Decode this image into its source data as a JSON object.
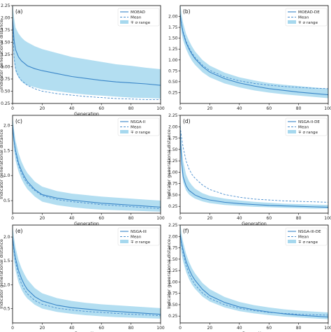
{
  "colors": {
    "median_line": "#3a86c8",
    "mean_line": "#4a8fcf",
    "band_fill": "#a6d8ee",
    "axis": "#000000"
  },
  "chart_data": [
    {
      "type": "line",
      "panel": "(a)",
      "legend": [
        "MOEAD",
        "Mean",
        "∓ σ range"
      ],
      "legend_position": "top-right",
      "xlabel": "Generation",
      "ylabel": "Indicator generational distance",
      "xlim": [
        0,
        100
      ],
      "ylim": [
        0.25,
        2.25
      ],
      "xticks": [
        "0",
        "20",
        "40",
        "60",
        "80",
        "100"
      ],
      "yticks": [
        "0.25",
        "0.50",
        "0.75",
        "1.00",
        "1.25",
        "1.50",
        "1.75",
        "2.00",
        "2.25"
      ],
      "x": [
        0,
        1,
        2,
        4,
        6,
        8,
        10,
        15,
        20,
        30,
        40,
        50,
        60,
        70,
        80,
        90,
        100
      ],
      "series": [
        {
          "name": "MOEAD",
          "values": [
            2.0,
            1.55,
            1.35,
            1.2,
            1.12,
            1.07,
            1.02,
            0.96,
            0.92,
            0.86,
            0.8,
            0.76,
            0.72,
            0.69,
            0.67,
            0.65,
            0.62
          ]
        },
        {
          "name": "Mean",
          "values": [
            2.0,
            1.2,
            0.95,
            0.8,
            0.72,
            0.67,
            0.62,
            0.55,
            0.5,
            0.45,
            0.42,
            0.39,
            0.37,
            0.35,
            0.34,
            0.33,
            0.33
          ]
        },
        {
          "name": "∓ σ range",
          "lower": [
            1.6,
            1.1,
            0.9,
            0.78,
            0.7,
            0.65,
            0.62,
            0.58,
            0.54,
            0.5,
            0.46,
            0.43,
            0.41,
            0.39,
            0.37,
            0.36,
            0.35
          ],
          "upper": [
            2.3,
            2.0,
            1.8,
            1.68,
            1.6,
            1.54,
            1.5,
            1.42,
            1.36,
            1.28,
            1.2,
            1.15,
            1.1,
            1.05,
            1.02,
            0.98,
            0.95
          ]
        }
      ]
    },
    {
      "type": "line",
      "panel": "(b)",
      "legend": [
        "MOEAD-DE",
        "Mean",
        "∓ σ range"
      ],
      "legend_position": "top-right",
      "xlabel": "",
      "ylabel": "",
      "xlim": [
        0,
        100
      ],
      "ylim": [
        0.0,
        2.25
      ],
      "xticks": [
        "0",
        "20",
        "40",
        "60",
        "80",
        "100"
      ],
      "yticks": [
        "0.25",
        "0.50",
        "0.75",
        "1.00",
        "1.25",
        "1.50",
        "1.75",
        "2.00"
      ],
      "x": [
        0,
        1,
        2,
        4,
        6,
        8,
        10,
        15,
        20,
        30,
        40,
        50,
        60,
        70,
        80,
        90,
        100
      ],
      "series": [
        {
          "name": "MOEAD-DE",
          "values": [
            2.05,
            1.8,
            1.62,
            1.4,
            1.25,
            1.13,
            1.03,
            0.85,
            0.72,
            0.57,
            0.47,
            0.4,
            0.34,
            0.3,
            0.26,
            0.23,
            0.2
          ]
        },
        {
          "name": "Mean",
          "values": [
            2.05,
            1.82,
            1.65,
            1.43,
            1.28,
            1.16,
            1.06,
            0.88,
            0.76,
            0.61,
            0.52,
            0.46,
            0.42,
            0.39,
            0.37,
            0.35,
            0.34
          ]
        },
        {
          "name": "∓ σ range",
          "lower": [
            1.85,
            1.6,
            1.45,
            1.25,
            1.1,
            0.98,
            0.89,
            0.72,
            0.6,
            0.46,
            0.37,
            0.3,
            0.25,
            0.21,
            0.18,
            0.15,
            0.12
          ],
          "upper": [
            2.3,
            2.05,
            1.85,
            1.6,
            1.44,
            1.31,
            1.2,
            1.0,
            0.87,
            0.71,
            0.6,
            0.53,
            0.47,
            0.43,
            0.4,
            0.37,
            0.34
          ]
        }
      ]
    },
    {
      "type": "line",
      "panel": "(c)",
      "legend": [
        "NSGA-II",
        "Mean",
        "∓ σ range"
      ],
      "legend_position": "top-right",
      "xlabel": "Generation",
      "ylabel": "Indicator generational distance",
      "xlim": [
        0,
        100
      ],
      "ylim": [
        0.25,
        2.2
      ],
      "xticks": [
        "0",
        "20",
        "40",
        "60",
        "80",
        "100"
      ],
      "yticks": [
        "0.5",
        "1.0",
        "1.5",
        "2.0"
      ],
      "x": [
        0,
        1,
        2,
        4,
        6,
        8,
        10,
        15,
        20,
        30,
        40,
        50,
        60,
        70,
        80,
        90,
        100
      ],
      "series": [
        {
          "name": "NSGA-II",
          "values": [
            2.0,
            1.7,
            1.5,
            1.25,
            1.1,
            0.98,
            0.88,
            0.72,
            0.62,
            0.55,
            0.51,
            0.48,
            0.45,
            0.43,
            0.41,
            0.39,
            0.37
          ]
        },
        {
          "name": "Mean",
          "values": [
            2.0,
            1.68,
            1.46,
            1.2,
            1.05,
            0.93,
            0.84,
            0.7,
            0.6,
            0.52,
            0.48,
            0.45,
            0.42,
            0.4,
            0.38,
            0.36,
            0.34
          ]
        },
        {
          "name": "∓ σ range",
          "lower": [
            1.85,
            1.5,
            1.3,
            1.08,
            0.93,
            0.82,
            0.73,
            0.58,
            0.48,
            0.41,
            0.37,
            0.34,
            0.32,
            0.31,
            0.3,
            0.29,
            0.28
          ],
          "upper": [
            2.2,
            1.9,
            1.7,
            1.45,
            1.28,
            1.15,
            1.05,
            0.88,
            0.78,
            0.69,
            0.64,
            0.61,
            0.58,
            0.56,
            0.54,
            0.52,
            0.5
          ]
        }
      ]
    },
    {
      "type": "line",
      "panel": "(d)",
      "legend": [
        "NSGA-II-DE",
        "Mean",
        "∓ σ range"
      ],
      "legend_position": "top-right",
      "xlabel": "Generation",
      "ylabel": "Indicator generational distance",
      "xlim": [
        0,
        100
      ],
      "ylim": [
        0.1,
        2.25
      ],
      "xticks": [
        "0",
        "20",
        "40",
        "60",
        "80",
        "100"
      ],
      "yticks": [
        "0.25",
        "0.50",
        "0.75",
        "1.00",
        "1.25",
        "1.50",
        "1.75",
        "2.00",
        "2.25"
      ],
      "x": [
        0,
        1,
        2,
        4,
        6,
        8,
        10,
        15,
        20,
        30,
        40,
        50,
        60,
        70,
        80,
        90,
        100
      ],
      "series": [
        {
          "name": "NSGA-II-DE",
          "values": [
            1.9,
            1.2,
            0.9,
            0.7,
            0.6,
            0.55,
            0.5,
            0.43,
            0.39,
            0.34,
            0.31,
            0.29,
            0.27,
            0.26,
            0.25,
            0.24,
            0.23
          ]
        },
        {
          "name": "Mean",
          "values": [
            2.0,
            1.75,
            1.55,
            1.25,
            1.07,
            0.95,
            0.87,
            0.72,
            0.62,
            0.51,
            0.45,
            0.41,
            0.39,
            0.37,
            0.36,
            0.35,
            0.34
          ]
        },
        {
          "name": "∓ σ range",
          "lower": [
            1.7,
            1.05,
            0.78,
            0.6,
            0.51,
            0.46,
            0.42,
            0.36,
            0.32,
            0.28,
            0.26,
            0.24,
            0.23,
            0.22,
            0.21,
            0.2,
            0.2
          ],
          "upper": [
            2.25,
            1.6,
            1.25,
            0.95,
            0.8,
            0.71,
            0.64,
            0.54,
            0.48,
            0.42,
            0.38,
            0.35,
            0.33,
            0.31,
            0.3,
            0.29,
            0.28
          ]
        }
      ]
    },
    {
      "type": "line",
      "panel": "(e)",
      "legend": [
        "NSGA-III",
        "Mean",
        "∓ σ range"
      ],
      "legend_position": "top-right",
      "xlabel": "Generation",
      "ylabel": "Indicator generational distance",
      "xlim": [
        0,
        100
      ],
      "ylim": [
        0.2,
        2.25
      ],
      "xticks": [
        "0",
        "20",
        "40",
        "60",
        "80",
        "100"
      ],
      "yticks": [
        "0.5",
        "1.0",
        "1.5",
        "2.0"
      ],
      "x": [
        0,
        1,
        2,
        4,
        6,
        8,
        10,
        15,
        20,
        30,
        40,
        50,
        60,
        70,
        80,
        90,
        100
      ],
      "series": [
        {
          "name": "NSGA-III",
          "values": [
            2.0,
            1.75,
            1.55,
            1.3,
            1.13,
            1.0,
            0.9,
            0.75,
            0.66,
            0.57,
            0.52,
            0.49,
            0.46,
            0.44,
            0.42,
            0.4,
            0.38
          ]
        },
        {
          "name": "Mean",
          "values": [
            2.0,
            1.7,
            1.48,
            1.2,
            1.02,
            0.9,
            0.81,
            0.67,
            0.59,
            0.51,
            0.47,
            0.44,
            0.42,
            0.4,
            0.38,
            0.37,
            0.35
          ]
        },
        {
          "name": "∓ σ range",
          "lower": [
            1.8,
            1.5,
            1.3,
            1.05,
            0.9,
            0.79,
            0.71,
            0.58,
            0.5,
            0.43,
            0.39,
            0.36,
            0.34,
            0.32,
            0.31,
            0.3,
            0.29
          ],
          "upper": [
            2.25,
            1.98,
            1.78,
            1.52,
            1.35,
            1.22,
            1.11,
            0.93,
            0.82,
            0.72,
            0.66,
            0.62,
            0.59,
            0.57,
            0.55,
            0.53,
            0.51
          ]
        }
      ]
    },
    {
      "type": "line",
      "panel": "(f)",
      "legend": [
        "NSGA-III-DE",
        "Mean",
        "∓ σ range"
      ],
      "legend_position": "top-right",
      "xlabel": "Generation",
      "ylabel": "Indicator generational distance",
      "xlim": [
        0,
        100
      ],
      "ylim": [
        0.1,
        2.25
      ],
      "xticks": [
        "0",
        "20",
        "40",
        "60",
        "80",
        "100"
      ],
      "yticks": [
        "0.25",
        "0.50",
        "0.75",
        "1.00",
        "1.25",
        "1.50",
        "1.75",
        "2.00",
        "2.25"
      ],
      "x": [
        0,
        1,
        2,
        4,
        6,
        8,
        10,
        15,
        20,
        30,
        40,
        50,
        60,
        70,
        80,
        90,
        100
      ],
      "series": [
        {
          "name": "NSGA-III-DE",
          "values": [
            2.05,
            1.85,
            1.7,
            1.45,
            1.28,
            1.14,
            1.04,
            0.84,
            0.7,
            0.55,
            0.45,
            0.39,
            0.34,
            0.3,
            0.27,
            0.25,
            0.23
          ]
        },
        {
          "name": "Mean",
          "values": [
            2.05,
            1.8,
            1.62,
            1.36,
            1.18,
            1.05,
            0.94,
            0.76,
            0.64,
            0.5,
            0.42,
            0.37,
            0.33,
            0.31,
            0.29,
            0.28,
            0.27
          ]
        },
        {
          "name": "∓ σ range",
          "lower": [
            1.85,
            1.6,
            1.45,
            1.22,
            1.06,
            0.94,
            0.85,
            0.68,
            0.57,
            0.44,
            0.36,
            0.31,
            0.27,
            0.24,
            0.22,
            0.2,
            0.18
          ],
          "upper": [
            2.3,
            2.05,
            1.88,
            1.62,
            1.44,
            1.3,
            1.19,
            0.98,
            0.84,
            0.67,
            0.56,
            0.49,
            0.44,
            0.4,
            0.37,
            0.35,
            0.33
          ]
        }
      ]
    }
  ]
}
